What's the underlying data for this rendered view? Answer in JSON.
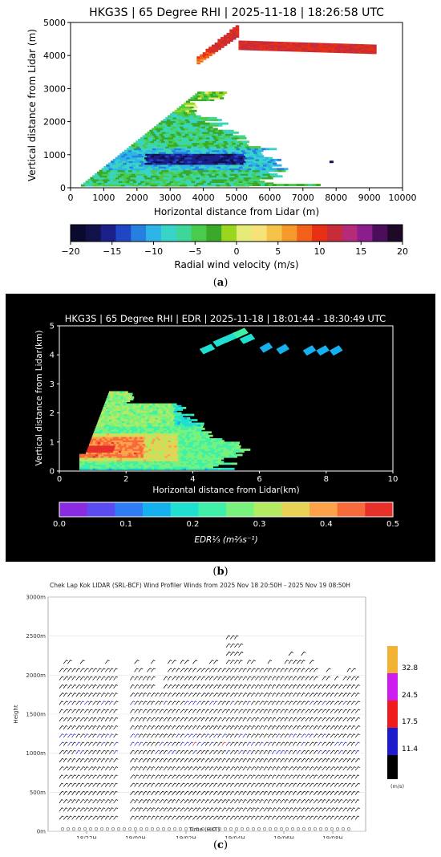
{
  "panel_labels": {
    "a": "a",
    "b": "b",
    "c": "c"
  },
  "chart_data": [
    {
      "type": "heatmap",
      "title": "HKG3S | 65 Degree RHI | 2025-11-18 | 18:26:58 UTC",
      "xlabel": "Horizontal distance from Lidar (m)",
      "ylabel": "Vertical distance from Lidar (m)",
      "xlim": [
        0,
        10000
      ],
      "ylim": [
        0,
        5000
      ],
      "xticks": [
        0,
        1000,
        2000,
        3000,
        4000,
        5000,
        6000,
        7000,
        8000,
        9000,
        10000
      ],
      "yticks": [
        0,
        1000,
        2000,
        3000,
        4000,
        5000
      ],
      "colorbar": {
        "label": "Radial wind velocity (m/s)",
        "range": [
          -20,
          20
        ],
        "ticks": [
          -20,
          -15,
          -10,
          -5,
          0,
          5,
          10,
          15,
          20
        ],
        "colormap": [
          "#0a0a2e",
          "#12124a",
          "#1a1f8a",
          "#1f46c4",
          "#2780e0",
          "#2fb4e8",
          "#39d4c8",
          "#3ed69a",
          "#49cc4e",
          "#3aa829",
          "#9ad61e",
          "#e6ea7a",
          "#f7e27a",
          "#f6c34a",
          "#f59a2a",
          "#f2611c",
          "#e83014",
          "#c82c3a",
          "#b62a7a",
          "#8c1e8c",
          "#4a0e5a",
          "#1e0a28"
        ]
      }
    },
    {
      "type": "heatmap",
      "title": "HKG3S | 65 Degree RHI | EDR | 2025-11-18 | 18:01:44 - 18:30:49 UTC",
      "xlabel": "Horizontal distance from Lidar(km)",
      "ylabel": "Vertical distance from Lidar(km)",
      "xlim": [
        0,
        10
      ],
      "ylim": [
        0,
        5
      ],
      "xticks": [
        0,
        2,
        4,
        6,
        8,
        10
      ],
      "yticks": [
        0,
        1,
        2,
        3,
        4,
        5
      ],
      "colorbar": {
        "label": "EDR⅓ (m⅔s⁻¹)",
        "range": [
          0.0,
          0.5
        ],
        "ticks": [
          "0.0",
          "0.1",
          "0.2",
          "0.3",
          "0.4",
          "0.5"
        ],
        "colormap": [
          "#8a2be2",
          "#5a4cf0",
          "#2f7cf6",
          "#15b0ee",
          "#1edfd0",
          "#3ef0a8",
          "#78f27c",
          "#b4ea62",
          "#e8d254",
          "#fba24a",
          "#f76a3a",
          "#e8302a"
        ]
      }
    },
    {
      "type": "scatter",
      "title": "Chek Lap Kok LIDAR (SRL-BCF) Wind Profiler Winds from 2025 Nov 18 20:50H - 2025 Nov 19 08:50H",
      "xlabel": "Time (HKT)",
      "ylabel": "Height",
      "xticks": [
        "18/22H",
        "19/00H",
        "19/02H",
        "19/04H",
        "19/06H",
        "19/08H"
      ],
      "yticks": [
        "0m",
        "500m",
        "1000m",
        "1500m",
        "2000m",
        "2500m",
        "3000m"
      ],
      "ylim": [
        0,
        3000
      ],
      "legend": {
        "unit": "(m/s)",
        "thresholds": [
          "11.4",
          "17.5",
          "24.5",
          "32.8"
        ],
        "colors": [
          "#000000",
          "#1c1ccc",
          "#ee1c1c",
          "#cc1cee",
          "#f2b233"
        ]
      }
    }
  ]
}
